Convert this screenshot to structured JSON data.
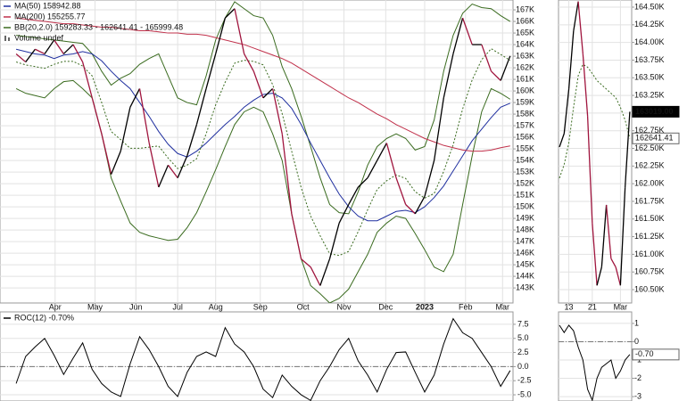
{
  "chart_data": [
    {
      "type": "line",
      "legend": "upper left",
      "grid": true,
      "xlim": [
        -1.7,
        52.3
      ],
      "xticks": [
        {
          "value": 4.1,
          "label": "Apr"
        },
        {
          "value": 8.3,
          "label": "May"
        },
        {
          "value": 12.6,
          "label": "Jun"
        },
        {
          "value": 17,
          "label": "Jul"
        },
        {
          "value": 21,
          "label": "Aug"
        },
        {
          "value": 25.7,
          "label": "Sep"
        },
        {
          "value": 30.2,
          "label": "Oct"
        },
        {
          "value": 34.5,
          "label": "Nov"
        },
        {
          "value": 38.9,
          "label": "Dec"
        },
        {
          "value": 43,
          "label": "2023"
        },
        {
          "value": 47.3,
          "label": "Feb"
        },
        {
          "value": 51.2,
          "label": "Mar"
        }
      ],
      "ylim": [
        141700,
        167850
      ],
      "yticks": [
        {
          "value": 167000,
          "label": "167K"
        },
        {
          "value": 166000,
          "label": "166K"
        },
        {
          "value": 165000,
          "label": "165K"
        },
        {
          "value": 164000,
          "label": "164K"
        },
        {
          "value": 163000,
          "label": "163K"
        },
        {
          "value": 162000,
          "label": "162K"
        },
        {
          "value": 161000,
          "label": "161K"
        },
        {
          "value": 160000,
          "label": "160K"
        },
        {
          "value": 159000,
          "label": "159K"
        },
        {
          "value": 158000,
          "label": "158K"
        },
        {
          "value": 157000,
          "label": "157K"
        },
        {
          "value": 156000,
          "label": "156K"
        },
        {
          "value": 155000,
          "label": "155K"
        },
        {
          "value": 154000,
          "label": "154K"
        },
        {
          "value": 153000,
          "label": "153K"
        },
        {
          "value": 152000,
          "label": "152K"
        },
        {
          "value": 151000,
          "label": "151K"
        },
        {
          "value": 150000,
          "label": "150K"
        },
        {
          "value": 149000,
          "label": "149K"
        },
        {
          "value": 148000,
          "label": "148K"
        },
        {
          "value": 147000,
          "label": "147K"
        },
        {
          "value": 146000,
          "label": "146K"
        },
        {
          "value": 145000,
          "label": "145K"
        },
        {
          "value": 144000,
          "label": "144K"
        },
        {
          "value": 143000,
          "label": "143K"
        }
      ],
      "series": [
        {
          "color": "#3a6b1f",
          "style": "solid",
          "values": [
            164800,
            164700,
            164600,
            164500,
            164400,
            164300,
            164200,
            164100,
            163200,
            161700,
            160500,
            161100,
            161500,
            162300,
            162800,
            163200,
            161300,
            159400,
            159000,
            158800,
            161300,
            164400,
            166300,
            167700,
            167100,
            166500,
            166300,
            164800,
            162100,
            160200,
            157800,
            155200,
            152500,
            150200,
            149500,
            149400,
            151300,
            153600,
            155200,
            155900,
            156300,
            155900,
            154900,
            155200,
            157500,
            161700,
            164800,
            166700,
            167500,
            167200,
            167100,
            166500,
            165999.48
          ]
        },
        {
          "color": "#3a6b1f",
          "style": "solid",
          "values": [
            160200,
            159800,
            159600,
            159400,
            160200,
            160800,
            160900,
            160200,
            159400,
            156300,
            152500,
            150500,
            148600,
            147800,
            147500,
            147300,
            147100,
            147200,
            148200,
            149500,
            151300,
            153200,
            155200,
            157100,
            158200,
            158600,
            158200,
            156300,
            154000,
            149400,
            145500,
            143200,
            142500,
            141700,
            142100,
            142900,
            144400,
            145900,
            147800,
            148600,
            149200,
            149000,
            147700,
            146300,
            144800,
            144400,
            145900,
            150200,
            154400,
            158200,
            160200,
            159800,
            159283.33
          ]
        },
        {
          "name": "MA(50) 158942.88",
          "color": "#1f2f9f",
          "style": "solid",
          "values": [
            163600,
            163400,
            163200,
            163100,
            162800,
            163100,
            163200,
            163400,
            163200,
            162600,
            161700,
            160900,
            160200,
            159000,
            157800,
            156500,
            155400,
            154600,
            154300,
            154800,
            155500,
            156300,
            157100,
            157800,
            158600,
            159200,
            159700,
            159800,
            159400,
            158500,
            157100,
            155500,
            154000,
            152500,
            151100,
            150000,
            149200,
            148800,
            148800,
            149200,
            149600,
            149700,
            149500,
            150000,
            150800,
            151800,
            153100,
            154400,
            155700,
            156700,
            157700,
            158600,
            158942.88
          ]
        },
        {
          "name": "MA(200) 155255.77",
          "color": "#c0304a",
          "style": "solid",
          "values": [
            166300,
            166200,
            166100,
            166000,
            165900,
            165800,
            165800,
            165700,
            165600,
            165500,
            165500,
            165400,
            165300,
            165200,
            165200,
            165100,
            165000,
            165000,
            164900,
            164900,
            164800,
            164600,
            164400,
            164200,
            164000,
            163700,
            163400,
            163100,
            162800,
            162400,
            161900,
            161400,
            160900,
            160400,
            159900,
            159400,
            159000,
            158500,
            158000,
            157600,
            157100,
            156700,
            156300,
            155900,
            155600,
            155300,
            155100,
            154900,
            154800,
            154800,
            154900,
            155100,
            155255.77
          ]
        },
        {
          "name": "BB(20,2.0) 159283.33 - 162641.41 - 165999.48",
          "color": "#3a6b1f",
          "style": "dotted",
          "values": [
            162500,
            162250,
            162100,
            161950,
            162300,
            162550,
            162550,
            162150,
            161300,
            159000,
            156500,
            155800,
            155050,
            155050,
            155150,
            155250,
            154200,
            153300,
            153600,
            154150,
            156300,
            158800,
            160750,
            162400,
            162650,
            162550,
            162250,
            160550,
            158050,
            154800,
            151650,
            149200,
            147500,
            145950,
            145800,
            146150,
            147850,
            149750,
            151500,
            152250,
            152750,
            152450,
            151300,
            150750,
            151150,
            153050,
            155350,
            158450,
            160950,
            162700,
            163650,
            163150,
            162641.41
          ]
        },
        {
          "color": "#000000",
          "down_color": "#a0153e",
          "style": "solid",
          "values": [
            163200,
            162500,
            163600,
            163200,
            164400,
            163200,
            164000,
            162500,
            159400,
            156300,
            152800,
            154800,
            158600,
            160200,
            155500,
            151700,
            153600,
            152500,
            154400,
            157100,
            160200,
            163200,
            166300,
            167100,
            163200,
            161700,
            159400,
            160200,
            156300,
            149400,
            145500,
            144800,
            143200,
            145500,
            148600,
            150200,
            151700,
            152500,
            154000,
            155500,
            152500,
            150200,
            149400,
            150900,
            154000,
            159400,
            163200,
            166300,
            164000,
            164000,
            161700,
            160900,
            163019
          ]
        }
      ],
      "annotations": [
        "Volume undef"
      ]
    },
    {
      "type": "line",
      "grid": true,
      "xlim": [
        -0.2,
        15.4
      ],
      "xticks": [
        {
          "value": 2,
          "label": "13"
        },
        {
          "value": 7,
          "label": "21"
        },
        {
          "value": 13,
          "label": "Mar"
        }
      ],
      "ylim": [
        160311,
        164601
      ],
      "yticks": [
        {
          "value": 164500,
          "label": "164.50K"
        },
        {
          "value": 164250,
          "label": "164.25K"
        },
        {
          "value": 164000,
          "label": "164.00K"
        },
        {
          "value": 163750,
          "label": "163.75K"
        },
        {
          "value": 163500,
          "label": "163.50K"
        },
        {
          "value": 163250,
          "label": "163.25K"
        },
        {
          "value": 163000,
          "label": "163.00K"
        },
        {
          "value": 162750,
          "label": "162.75K"
        },
        {
          "value": 162500,
          "label": "162.50K"
        },
        {
          "value": 162250,
          "label": "162.25K"
        },
        {
          "value": 162000,
          "label": "162.00K"
        },
        {
          "value": 161750,
          "label": "161.75K"
        },
        {
          "value": 161500,
          "label": "161.50K"
        },
        {
          "value": 161250,
          "label": "161.25K"
        },
        {
          "value": 161000,
          "label": "161.00K"
        },
        {
          "value": 160750,
          "label": "160.75K"
        },
        {
          "value": 160500,
          "label": "160.50K"
        }
      ],
      "series": [
        {
          "color": "#3a6b1f",
          "style": "dotted",
          "label_style": "outline",
          "values": [
            162080,
            162270,
            162580,
            163080,
            163530,
            163690,
            163650,
            163560,
            163460,
            163400,
            163340,
            163280,
            163220,
            163080,
            162900,
            162641.41
          ],
          "value_labels": [
            null,
            null,
            null,
            null,
            null,
            null,
            null,
            null,
            null,
            null,
            null,
            null,
            null,
            null,
            null,
            "162641.41"
          ]
        },
        {
          "color": "#000000",
          "down_color": "#a0153e",
          "style": "solid",
          "label_style": "filled",
          "values": [
            162520,
            162710,
            163340,
            164160,
            164580,
            163840,
            162960,
            161440,
            160560,
            160820,
            161700,
            160940,
            160820,
            160560,
            161950,
            163019
          ],
          "value_labels": [
            null,
            null,
            null,
            null,
            null,
            null,
            null,
            null,
            null,
            null,
            null,
            null,
            null,
            null,
            null,
            "163019.00"
          ]
        }
      ]
    },
    {
      "type": "line",
      "legend": "upper left",
      "grid": true,
      "zero_line": true,
      "xlim": [
        -1.7,
        52.3
      ],
      "ylim": [
        -6.1,
        9.7
      ],
      "yticks": [
        7.5,
        {
          "value": 5,
          "label": "5.0"
        },
        2.5,
        {
          "value": 0,
          "label": "0.0"
        },
        -2.5,
        {
          "value": -5,
          "label": "-5.0"
        }
      ],
      "series": [
        {
          "name": "ROC(12) -0.70%",
          "color": "#000000",
          "style": "solid",
          "values": [
            -3,
            1.8,
            3.5,
            5,
            2,
            -1.4,
            1.5,
            4.2,
            -0.5,
            -3,
            -4.5,
            -5.3,
            0.5,
            5.3,
            3,
            0,
            -3.5,
            -5.3,
            -1,
            1.8,
            2.6,
            1.8,
            6.9,
            4,
            2.6,
            0,
            -4,
            -5.5,
            -1.5,
            -3.5,
            -5,
            -6,
            -2.5,
            0,
            3,
            5,
            1,
            -1.5,
            -4.5,
            -0.5,
            2.5,
            2.6,
            -1,
            -4.5,
            -1.5,
            4,
            8.5,
            6,
            5,
            2.5,
            0,
            -3.5,
            -0.7
          ]
        }
      ]
    },
    {
      "type": "line",
      "grid": true,
      "zero_line": true,
      "xlim": [
        -0.2,
        15.4
      ],
      "ylim": [
        -3.24,
        1.63
      ],
      "yticks": [
        1,
        0,
        -1,
        -2,
        -3
      ],
      "series": [
        {
          "color": "#000000",
          "style": "solid",
          "label_style": "outline",
          "values": [
            0.9,
            0.5,
            0.9,
            0.6,
            -0.3,
            -1,
            -2.6,
            -3.2,
            -2,
            -1.4,
            -1.2,
            -1,
            -2,
            -1.6,
            -1,
            -0.7
          ],
          "value_labels": [
            null,
            null,
            null,
            null,
            null,
            null,
            null,
            null,
            null,
            null,
            null,
            null,
            null,
            null,
            null,
            "-0.70"
          ]
        }
      ]
    }
  ]
}
